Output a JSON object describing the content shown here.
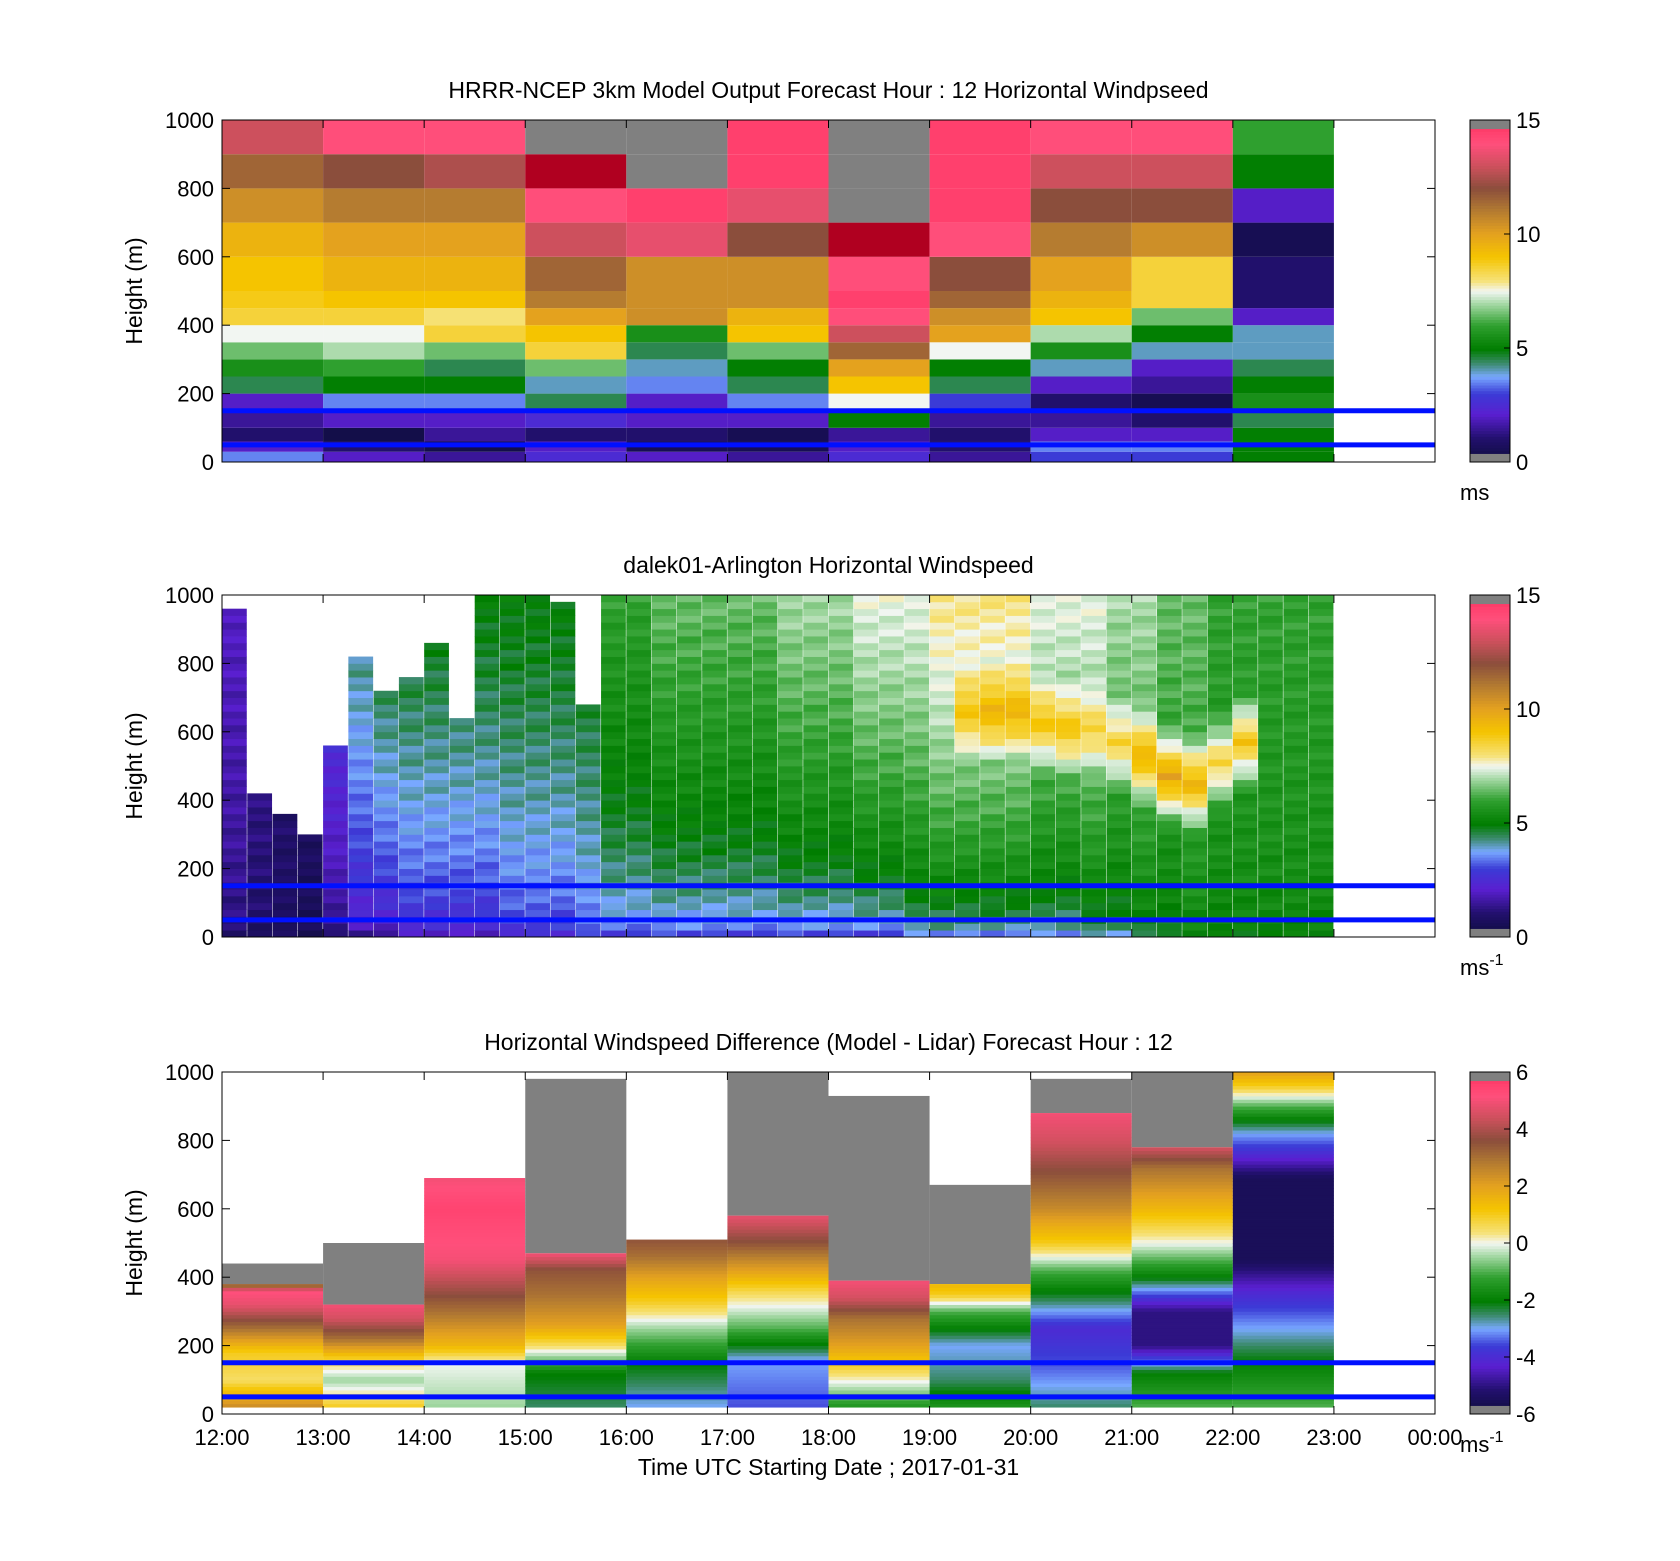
{
  "figure": {
    "xticks": [
      "12:00",
      "13:00",
      "14:00",
      "15:00",
      "16:00",
      "17:00",
      "18:00",
      "19:00",
      "20:00",
      "21:00",
      "22:00",
      "23:00",
      "00:00"
    ],
    "xlabel": "Time UTC  Starting Date ; 2017-01-31",
    "overlay_line_color": "#0010ff",
    "missing_color": "#808080"
  },
  "chart_data": [
    {
      "type": "heatmap",
      "title": "HRRR-NCEP 3km Model Output   Forecast Hour : 12 Horizontal Windpseed",
      "ylabel": "Height (m)",
      "ylim": [
        0,
        1000
      ],
      "yticks": [
        "0",
        "200",
        "400",
        "600",
        "800",
        "1000"
      ],
      "xlim_hours": [
        12,
        24
      ],
      "colorbar": {
        "range": [
          0,
          15
        ],
        "ticks": [
          "0",
          "5",
          "10",
          "15"
        ],
        "unit": "ms",
        "unit_superscript": "",
        "colormap": "speed"
      },
      "overlay_lines_m": [
        50,
        150
      ],
      "hours": [
        12,
        13,
        14,
        15,
        16,
        17,
        18,
        19,
        20,
        21,
        22
      ],
      "levels_m": [
        0,
        30,
        60,
        100,
        150,
        200,
        250,
        300,
        350,
        400,
        450,
        500,
        600,
        700,
        800,
        900,
        1000
      ],
      "values": [
        [
          3.5,
          2.0,
          1.5,
          2.5,
          2.0,
          1.5,
          2.5,
          1.5,
          3.0,
          3.0,
          5.0
        ],
        [
          2.0,
          1.0,
          0.3,
          2.0,
          0.5,
          0.5,
          2.0,
          1.0,
          3.5,
          3.5,
          5.0
        ],
        [
          1.0,
          0.3,
          1.5,
          1.0,
          1.0,
          0.5,
          1.5,
          1.0,
          2.0,
          2.0,
          5.0
        ],
        [
          1.5,
          2.0,
          2.0,
          2.5,
          2.0,
          2.0,
          5.0,
          1.5,
          1.5,
          1.0,
          4.5
        ],
        [
          2.0,
          3.5,
          3.5,
          4.5,
          2.0,
          3.5,
          7.5,
          3.0,
          1.0,
          0.5,
          5.5
        ],
        [
          4.5,
          5.0,
          5.0,
          4.0,
          3.5,
          4.5,
          9.0,
          4.5,
          2.0,
          1.5,
          5.0
        ],
        [
          5.5,
          6.0,
          4.5,
          6.5,
          4.0,
          5.0,
          10.0,
          5.0,
          4.0,
          2.0,
          4.5
        ],
        [
          6.5,
          7.0,
          6.5,
          8.5,
          4.5,
          6.5,
          11.5,
          7.5,
          5.5,
          4.0,
          4.0
        ],
        [
          7.5,
          7.5,
          8.5,
          9.0,
          5.5,
          9.0,
          13.0,
          10.0,
          7.0,
          5.0,
          4.0
        ],
        [
          8.5,
          8.5,
          8.0,
          10.0,
          10.5,
          9.5,
          14.0,
          10.5,
          9.0,
          6.5,
          2.0
        ],
        [
          8.8,
          9.0,
          9.0,
          11.0,
          10.5,
          10.5,
          14.5,
          11.5,
          9.5,
          8.5,
          1.0
        ],
        [
          9.0,
          9.5,
          9.5,
          11.5,
          10.5,
          10.5,
          14.0,
          12.0,
          10.0,
          8.5,
          1.0
        ],
        [
          9.5,
          10.0,
          10.0,
          13.0,
          13.5,
          12.0,
          15.0,
          14.0,
          11.0,
          10.5,
          0.5
        ],
        [
          10.5,
          11.0,
          11.0,
          14.0,
          14.5,
          13.5,
          16.0,
          14.5,
          12.0,
          12.0,
          2.0
        ],
        [
          11.5,
          12.0,
          12.5,
          15.0,
          16.0,
          14.5,
          16.0,
          14.5,
          13.0,
          13.0,
          5.0
        ],
        [
          13.0,
          14.0,
          14.0,
          16.0,
          16.0,
          14.5,
          16.0,
          14.5,
          14.0,
          14.0,
          6.0
        ]
      ]
    },
    {
      "type": "heatmap",
      "title": "dalek01-Arlington  Horizontal Windspeed",
      "ylabel": "Height (m)",
      "ylim": [
        0,
        1000
      ],
      "yticks": [
        "0",
        "200",
        "400",
        "600",
        "800",
        "1000"
      ],
      "xlim_hours": [
        12,
        24
      ],
      "colorbar": {
        "range": [
          0,
          15
        ],
        "ticks": [
          "0",
          "5",
          "10",
          "15"
        ],
        "unit": "ms",
        "unit_superscript": "-1",
        "colormap": "speed"
      },
      "overlay_lines_m": [
        50,
        150
      ],
      "profile_spacing_hours": 0.25,
      "first_profile_hour": 12.0,
      "profiles": [
        {
          "top_m": 960,
          "low": 1.0,
          "top": 2.0,
          "jet_h": 0,
          "jet_v": 0
        },
        {
          "top_m": 420,
          "low": 0.8,
          "top": 1.5,
          "jet_h": 0,
          "jet_v": 0
        },
        {
          "top_m": 360,
          "low": 0.6,
          "top": 1.2,
          "jet_h": 0,
          "jet_v": 0
        },
        {
          "top_m": 300,
          "low": 0.5,
          "top": 1.0,
          "jet_h": 0,
          "jet_v": 0
        },
        {
          "top_m": 560,
          "low": 1.0,
          "top": 3.0,
          "jet_h": 0,
          "jet_v": 0
        },
        {
          "top_m": 820,
          "low": 1.5,
          "top": 4.5,
          "jet_h": 0,
          "jet_v": 0
        },
        {
          "top_m": 720,
          "low": 1.5,
          "top": 5.0,
          "jet_h": 0,
          "jet_v": 0
        },
        {
          "top_m": 760,
          "low": 2.0,
          "top": 5.0,
          "jet_h": 0,
          "jet_v": 0
        },
        {
          "top_m": 860,
          "low": 2.0,
          "top": 5.0,
          "jet_h": 0,
          "jet_v": 0
        },
        {
          "top_m": 640,
          "low": 2.0,
          "top": 5.0,
          "jet_h": 0,
          "jet_v": 0
        },
        {
          "top_m": 1000,
          "low": 2.0,
          "top": 5.0,
          "jet_h": 0,
          "jet_v": 0
        },
        {
          "top_m": 1000,
          "low": 2.5,
          "top": 5.0,
          "jet_h": 0,
          "jet_v": 0
        },
        {
          "top_m": 1000,
          "low": 2.5,
          "top": 5.0,
          "jet_h": 0,
          "jet_v": 0
        },
        {
          "top_m": 980,
          "low": 2.5,
          "top": 5.0,
          "jet_h": 0,
          "jet_v": 0
        },
        {
          "top_m": 680,
          "low": 3.0,
          "top": 5.0,
          "jet_h": 0,
          "jet_v": 0
        },
        {
          "top_m": 1000,
          "low": 3.0,
          "top": 6.0,
          "jet_h": 0,
          "jet_v": 0
        },
        {
          "top_m": 1000,
          "low": 3.0,
          "top": 6.0,
          "jet_h": 0,
          "jet_v": 0
        },
        {
          "top_m": 1000,
          "low": 3.0,
          "top": 6.5,
          "jet_h": 0,
          "jet_v": 0
        },
        {
          "top_m": 1000,
          "low": 3.0,
          "top": 6.5,
          "jet_h": 0,
          "jet_v": 0
        },
        {
          "top_m": 1000,
          "low": 3.0,
          "top": 6.5,
          "jet_h": 0,
          "jet_v": 0
        },
        {
          "top_m": 1000,
          "low": 3.0,
          "top": 6.5,
          "jet_h": 0,
          "jet_v": 0
        },
        {
          "top_m": 1000,
          "low": 3.0,
          "top": 6.5,
          "jet_h": 0,
          "jet_v": 0
        },
        {
          "top_m": 1000,
          "low": 3.0,
          "top": 7.0,
          "jet_h": 0,
          "jet_v": 0
        },
        {
          "top_m": 1000,
          "low": 3.0,
          "top": 7.0,
          "jet_h": 0,
          "jet_v": 0
        },
        {
          "top_m": 1000,
          "low": 3.0,
          "top": 7.0,
          "jet_h": 0,
          "jet_v": 0
        },
        {
          "top_m": 1000,
          "low": 3.0,
          "top": 7.5,
          "jet_h": 0,
          "jet_v": 0
        },
        {
          "top_m": 1000,
          "low": 3.0,
          "top": 7.5,
          "jet_h": 0,
          "jet_v": 0
        },
        {
          "top_m": 1000,
          "low": 3.5,
          "top": 7.5,
          "jet_h": 0,
          "jet_v": 0
        },
        {
          "top_m": 1000,
          "low": 3.5,
          "top": 8.0,
          "jet_h": 0,
          "jet_v": 0
        },
        {
          "top_m": 1000,
          "low": 3.5,
          "top": 8.0,
          "jet_h": 650,
          "jet_v": 9.0
        },
        {
          "top_m": 1000,
          "low": 3.5,
          "top": 8.0,
          "jet_h": 650,
          "jet_v": 9.5
        },
        {
          "top_m": 1000,
          "low": 3.5,
          "top": 8.0,
          "jet_h": 650,
          "jet_v": 9.5
        },
        {
          "top_m": 1000,
          "low": 3.5,
          "top": 7.5,
          "jet_h": 620,
          "jet_v": 9.0
        },
        {
          "top_m": 1000,
          "low": 3.5,
          "top": 7.5,
          "jet_h": 600,
          "jet_v": 9.0
        },
        {
          "top_m": 1000,
          "low": 4.0,
          "top": 7.5,
          "jet_h": 600,
          "jet_v": 8.5
        },
        {
          "top_m": 1000,
          "low": 4.0,
          "top": 7.0,
          "jet_h": 560,
          "jet_v": 8.5
        },
        {
          "top_m": 1000,
          "low": 4.5,
          "top": 7.0,
          "jet_h": 520,
          "jet_v": 9.5
        },
        {
          "top_m": 1000,
          "low": 4.5,
          "top": 6.5,
          "jet_h": 460,
          "jet_v": 10.0
        },
        {
          "top_m": 1000,
          "low": 5.0,
          "top": 6.5,
          "jet_h": 440,
          "jet_v": 9.5
        },
        {
          "top_m": 1000,
          "low": 5.0,
          "top": 6.0,
          "jet_h": 500,
          "jet_v": 8.5
        },
        {
          "top_m": 1000,
          "low": 5.0,
          "top": 6.0,
          "jet_h": 560,
          "jet_v": 9.0
        },
        {
          "top_m": 1000,
          "low": 5.0,
          "top": 6.0,
          "jet_h": 0,
          "jet_v": 0
        },
        {
          "top_m": 1000,
          "low": 5.0,
          "top": 6.0,
          "jet_h": 0,
          "jet_v": 0
        },
        {
          "top_m": 1000,
          "low": 5.0,
          "top": 6.0,
          "jet_h": 0,
          "jet_v": 0
        }
      ]
    },
    {
      "type": "heatmap",
      "title": "Horizontal Windspeed Difference (Model - Lidar) Forecast Hour : 12",
      "ylabel": "Height (m)",
      "ylim": [
        0,
        1000
      ],
      "yticks": [
        "0",
        "200",
        "400",
        "600",
        "800",
        "1000"
      ],
      "xlim_hours": [
        12,
        24
      ],
      "colorbar": {
        "range": [
          -6,
          6
        ],
        "ticks": [
          "-6",
          "-4",
          "-2",
          "0",
          "2",
          "4",
          "6"
        ],
        "unit": "ms",
        "unit_superscript": "-1",
        "colormap": "diff"
      },
      "overlay_lines_m": [
        50,
        150
      ],
      "columns": [
        {
          "hour": 12,
          "valid_top": 380,
          "gray_top": 440,
          "points": [
            [
              20,
              2.5
            ],
            [
              100,
              0.5
            ],
            [
              180,
              1.0
            ],
            [
              250,
              3.0
            ],
            [
              320,
              4.8
            ],
            [
              360,
              5.2
            ],
            [
              380,
              2.5
            ]
          ]
        },
        {
          "hour": 13,
          "valid_top": 320,
          "gray_top": 500,
          "points": [
            [
              20,
              1.0
            ],
            [
              100,
              -0.5
            ],
            [
              150,
              0.5
            ],
            [
              220,
              3.0
            ],
            [
              280,
              4.5
            ],
            [
              320,
              5.0
            ]
          ]
        },
        {
          "hour": 14,
          "valid_top": 690,
          "gray_top": 690,
          "points": [
            [
              20,
              -0.5
            ],
            [
              150,
              0.0
            ],
            [
              200,
              1.5
            ],
            [
              300,
              3.0
            ],
            [
              450,
              5.0
            ],
            [
              600,
              5.5
            ],
            [
              690,
              5.0
            ]
          ]
        },
        {
          "hour": 15,
          "valid_top": 470,
          "gray_top": 980,
          "points": [
            [
              20,
              -2.5
            ],
            [
              120,
              -2.0
            ],
            [
              200,
              0.5
            ],
            [
              260,
              2.0
            ],
            [
              350,
              3.0
            ],
            [
              420,
              3.5
            ],
            [
              470,
              5.0
            ]
          ]
        },
        {
          "hour": 16,
          "valid_top": 510,
          "gray_top": 510,
          "points": [
            [
              20,
              -3.0
            ],
            [
              150,
              -2.0
            ],
            [
              250,
              -0.5
            ],
            [
              330,
              1.0
            ],
            [
              400,
              2.0
            ],
            [
              460,
              3.0
            ],
            [
              510,
              3.5
            ]
          ]
        },
        {
          "hour": 17,
          "valid_top": 580,
          "gray_top": 1000,
          "points": [
            [
              20,
              -3.5
            ],
            [
              160,
              -3.0
            ],
            [
              250,
              -1.0
            ],
            [
              350,
              0.5
            ],
            [
              420,
              2.0
            ],
            [
              500,
              3.5
            ],
            [
              580,
              4.8
            ]
          ]
        },
        {
          "hour": 18,
          "valid_top": 390,
          "gray_top": 930,
          "points": [
            [
              20,
              -1.5
            ],
            [
              120,
              0.5
            ],
            [
              200,
              2.0
            ],
            [
              280,
              3.0
            ],
            [
              340,
              4.5
            ],
            [
              390,
              5.0
            ]
          ]
        },
        {
          "hour": 19,
          "valid_top": 380,
          "gray_top": 670,
          "points": [
            [
              20,
              -1.5
            ],
            [
              100,
              -2.5
            ],
            [
              200,
              -3.0
            ],
            [
              300,
              -1.0
            ],
            [
              350,
              1.0
            ],
            [
              380,
              1.5
            ]
          ]
        },
        {
          "hour": 20,
          "valid_top": 880,
          "gray_top": 980,
          "points": [
            [
              20,
              -2.5
            ],
            [
              150,
              -3.5
            ],
            [
              250,
              -4.0
            ],
            [
              330,
              -2.5
            ],
            [
              420,
              -1.0
            ],
            [
              500,
              1.0
            ],
            [
              600,
              2.5
            ],
            [
              700,
              3.5
            ],
            [
              800,
              4.5
            ],
            [
              880,
              5.0
            ]
          ]
        },
        {
          "hour": 21,
          "valid_top": 780,
          "gray_top": 1000,
          "points": [
            [
              20,
              -1.0
            ],
            [
              120,
              -2.0
            ],
            [
              200,
              -5.0
            ],
            [
              300,
              -5.0
            ],
            [
              400,
              -2.0
            ],
            [
              500,
              0.0
            ],
            [
              600,
              1.5
            ],
            [
              720,
              3.0
            ],
            [
              780,
              4.5
            ]
          ]
        },
        {
          "hour": 22,
          "valid_top": 1000,
          "gray_top": 1000,
          "points": [
            [
              20,
              -1.0
            ],
            [
              150,
              -2.0
            ],
            [
              250,
              -3.0
            ],
            [
              350,
              -4.0
            ],
            [
              450,
              -5.5
            ],
            [
              690,
              -5.5
            ],
            [
              760,
              -4.0
            ],
            [
              820,
              -3.0
            ],
            [
              900,
              -1.0
            ],
            [
              960,
              1.0
            ],
            [
              1000,
              2.0
            ]
          ]
        }
      ]
    }
  ]
}
